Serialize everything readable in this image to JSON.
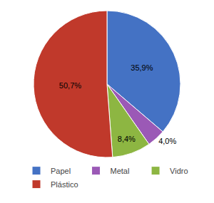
{
  "chart_data": {
    "type": "pie",
    "categories": [
      "Papel",
      "Metal",
      "Vidro",
      "Plástico"
    ],
    "values": [
      35.9,
      4.0,
      8.4,
      50.7
    ],
    "value_labels": [
      "35,9%",
      "4,0%",
      "8,4%",
      "50,7%"
    ],
    "colors": [
      "#4472C4",
      "#9B59B6",
      "#8DB642",
      "#C0392B"
    ],
    "data_labels": true,
    "legend": "bottom"
  }
}
